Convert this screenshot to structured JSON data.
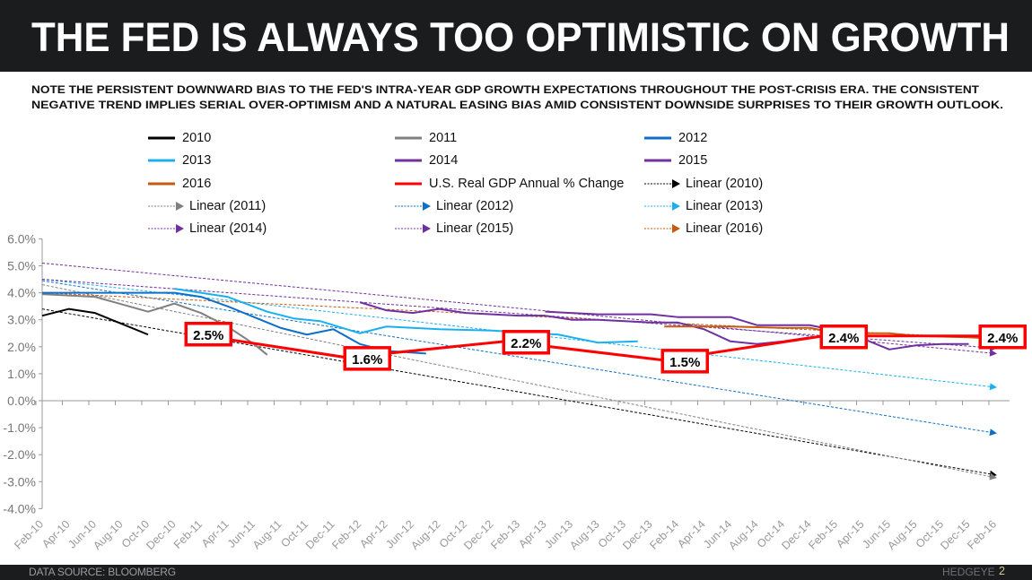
{
  "header": {
    "title": "THE FED IS ALWAYS TOO OPTIMISTIC ON GROWTH",
    "subtitle_lines": [
      "NOTE THE PERSISTENT  DOWNWARD BIAS TO THE FED'S INTRA-YEAR GDP GROWTH EXPECTATIONS THROUGHOUT  THE POST-CRISIS ERA. THE CONSISTENT",
      "NEGATIVE TREND IMPLIES SERIAL OVER-OPTIMISM  AND A NATURAL EASING BIAS AMID CONSISTENT  DOWNSIDE SURPRISES TO THEIR GROWTH OUTLOOK."
    ]
  },
  "footer": {
    "source": "DATA SOURCE: BLOOMBERG",
    "brand": "HEDGEYE",
    "page": "2"
  },
  "chart_data": {
    "type": "line",
    "title": "",
    "xlabel": "",
    "ylabel": "",
    "ylim": [
      -4.0,
      6.0
    ],
    "y_ticks": [
      "6.0%",
      "5.0%",
      "4.0%",
      "3.0%",
      "2.0%",
      "1.0%",
      "0.0%",
      "-1.0%",
      "-2.0%",
      "-3.0%",
      "-4.0%"
    ],
    "x_ticks": [
      "Feb-10",
      "Apr-10",
      "Jun-10",
      "Aug-10",
      "Oct-10",
      "Dec-10",
      "Feb-11",
      "Apr-11",
      "Jun-11",
      "Aug-11",
      "Oct-11",
      "Dec-11",
      "Feb-12",
      "Apr-12",
      "Jun-12",
      "Aug-12",
      "Oct-12",
      "Dec-12",
      "Feb-13",
      "Apr-13",
      "Jun-13",
      "Aug-13",
      "Oct-13",
      "Dec-13",
      "Feb-14",
      "Apr-14",
      "Jun-14",
      "Aug-14",
      "Oct-14",
      "Dec-14",
      "Feb-15",
      "Apr-15",
      "Jun-15",
      "Aug-15",
      "Oct-15",
      "Dec-15",
      "Feb-16"
    ],
    "grid": false,
    "legend_position": "top",
    "series": [
      {
        "name": "2010",
        "color": "#000000",
        "style": "solid",
        "points": [
          [
            "Feb-10",
            3.15
          ],
          [
            "Apr-10",
            3.4
          ],
          [
            "Jun-10",
            3.25
          ],
          [
            "Aug-10",
            2.85
          ],
          [
            "Oct-10",
            2.45
          ]
        ]
      },
      {
        "name": "2011",
        "color": "#808080",
        "style": "solid",
        "points": [
          [
            "Feb-10",
            3.95
          ],
          [
            "Jun-10",
            3.85
          ],
          [
            "Oct-10",
            3.3
          ],
          [
            "Dec-10",
            3.6
          ],
          [
            "Feb-11",
            3.25
          ],
          [
            "Apr-11",
            2.75
          ],
          [
            "Jun-11",
            2.1
          ],
          [
            "Jul-11",
            1.7
          ]
        ]
      },
      {
        "name": "2012",
        "color": "#0f6fc6",
        "style": "solid",
        "points": [
          [
            "Feb-10",
            4.0
          ],
          [
            "Dec-10",
            4.0
          ],
          [
            "Feb-11",
            3.85
          ],
          [
            "Apr-11",
            3.5
          ],
          [
            "Jun-11",
            3.1
          ],
          [
            "Aug-11",
            2.7
          ],
          [
            "Oct-11",
            2.45
          ],
          [
            "Dec-11",
            2.65
          ],
          [
            "Feb-12",
            2.1
          ],
          [
            "Apr-12",
            1.85
          ],
          [
            "Jul-12",
            1.75
          ]
        ]
      },
      {
        "name": "2013",
        "color": "#1ab0ef",
        "style": "solid",
        "points": [
          [
            "Dec-10",
            4.15
          ],
          [
            "Apr-11",
            3.85
          ],
          [
            "Jul-11",
            3.3
          ],
          [
            "Sep-11",
            3.05
          ],
          [
            "Nov-11",
            2.95
          ],
          [
            "Feb-12",
            2.5
          ],
          [
            "Apr-12",
            2.75
          ],
          [
            "Aug-12",
            2.65
          ],
          [
            "Dec-12",
            2.6
          ],
          [
            "May-13",
            2.45
          ],
          [
            "Aug-13",
            2.15
          ],
          [
            "Nov-13",
            2.2
          ]
        ]
      },
      {
        "name": "2014",
        "color": "#7030a0",
        "style": "solid",
        "points": [
          [
            "Feb-12",
            3.65
          ],
          [
            "Apr-12",
            3.35
          ],
          [
            "Jun-12",
            3.25
          ],
          [
            "Aug-12",
            3.4
          ],
          [
            "Oct-12",
            3.25
          ],
          [
            "Dec-12",
            3.2
          ],
          [
            "Feb-13",
            3.15
          ],
          [
            "Apr-13",
            3.15
          ],
          [
            "Jun-13",
            3.0
          ],
          [
            "Aug-13",
            3.0
          ],
          [
            "Oct-13",
            2.95
          ],
          [
            "Dec-13",
            2.9
          ],
          [
            "Feb-14",
            2.9
          ],
          [
            "Apr-14",
            2.65
          ],
          [
            "Jun-14",
            2.2
          ],
          [
            "Aug-14",
            2.1
          ],
          [
            "Oct-14",
            2.2
          ],
          [
            "Dec-14",
            2.35
          ]
        ]
      },
      {
        "name": "2015",
        "color": "#7030a0",
        "style": "solid",
        "points": [
          [
            "Apr-13",
            3.3
          ],
          [
            "Jun-13",
            3.25
          ],
          [
            "Aug-13",
            3.2
          ],
          [
            "Dec-13",
            3.2
          ],
          [
            "Feb-14",
            3.1
          ],
          [
            "Jun-14",
            3.1
          ],
          [
            "Aug-14",
            2.8
          ],
          [
            "Dec-14",
            2.8
          ],
          [
            "Feb-15",
            2.6
          ],
          [
            "Apr-15",
            2.3
          ],
          [
            "Jun-15",
            1.9
          ],
          [
            "Aug-15",
            2.05
          ],
          [
            "Oct-15",
            2.1
          ],
          [
            "Dec-15",
            2.1
          ]
        ]
      },
      {
        "name": "2016",
        "color": "#c55a11",
        "style": "solid",
        "points": [
          [
            "Jan-14",
            2.75
          ],
          [
            "Jun-14",
            2.75
          ],
          [
            "Oct-14",
            2.7
          ],
          [
            "Dec-14",
            2.7
          ],
          [
            "Feb-15",
            2.5
          ],
          [
            "Jun-15",
            2.5
          ],
          [
            "Aug-15",
            2.4
          ],
          [
            "Dec-15",
            2.35
          ],
          [
            "Feb-16",
            2.3
          ]
        ]
      },
      {
        "name": "U.S. Real GDP Annual % Change",
        "color": "#ff0000",
        "style": "solid-thick",
        "points": [
          [
            "Jan-11",
            2.5
          ],
          [
            "Jan-12",
            1.6
          ],
          [
            "Jan-13",
            2.2
          ],
          [
            "Jan-14",
            1.5
          ],
          [
            "Jan-15",
            2.4
          ],
          [
            "Jan-16",
            2.4
          ]
        ]
      },
      {
        "name": "Linear (2010)",
        "color": "#000000",
        "style": "dotted-arrow",
        "points": [
          [
            "Feb-10",
            3.4
          ],
          [
            "Feb-16",
            -2.75
          ]
        ]
      },
      {
        "name": "Linear (2011)",
        "color": "#808080",
        "style": "dotted-arrow",
        "points": [
          [
            "Feb-10",
            4.3
          ],
          [
            "Feb-16",
            -2.85
          ]
        ]
      },
      {
        "name": "Linear (2012)",
        "color": "#0f6fc6",
        "style": "dotted-arrow",
        "points": [
          [
            "Feb-10",
            4.45
          ],
          [
            "Feb-16",
            -1.2
          ]
        ]
      },
      {
        "name": "Linear (2013)",
        "color": "#1ab0ef",
        "style": "dotted-arrow",
        "points": [
          [
            "Feb-10",
            4.5
          ],
          [
            "Feb-16",
            0.5
          ]
        ]
      },
      {
        "name": "Linear (2014)",
        "color": "#7030a0",
        "style": "dotted-arrow",
        "points": [
          [
            "Feb-10",
            5.1
          ],
          [
            "Feb-16",
            1.75
          ]
        ]
      },
      {
        "name": "Linear (2015)",
        "color": "#7030a0",
        "style": "dotted-arrow",
        "points": [
          [
            "Feb-10",
            4.5
          ],
          [
            "Feb-16",
            1.95
          ]
        ]
      },
      {
        "name": "Linear (2016)",
        "color": "#c55a11",
        "style": "dotted-arrow",
        "points": [
          [
            "Feb-10",
            4.0
          ],
          [
            "Feb-16",
            2.3
          ]
        ]
      }
    ],
    "data_labels": [
      {
        "x": "Jan-11",
        "value": 2.5,
        "text": "2.5%"
      },
      {
        "x": "Jan-12",
        "value": 1.6,
        "text": "1.6%"
      },
      {
        "x": "Jan-13",
        "value": 2.2,
        "text": "2.2%"
      },
      {
        "x": "Jan-14",
        "value": 1.5,
        "text": "1.5%"
      },
      {
        "x": "Jan-15",
        "value": 2.4,
        "text": "2.4%"
      },
      {
        "x": "Jan-16",
        "value": 2.4,
        "text": "2.4%"
      }
    ]
  }
}
